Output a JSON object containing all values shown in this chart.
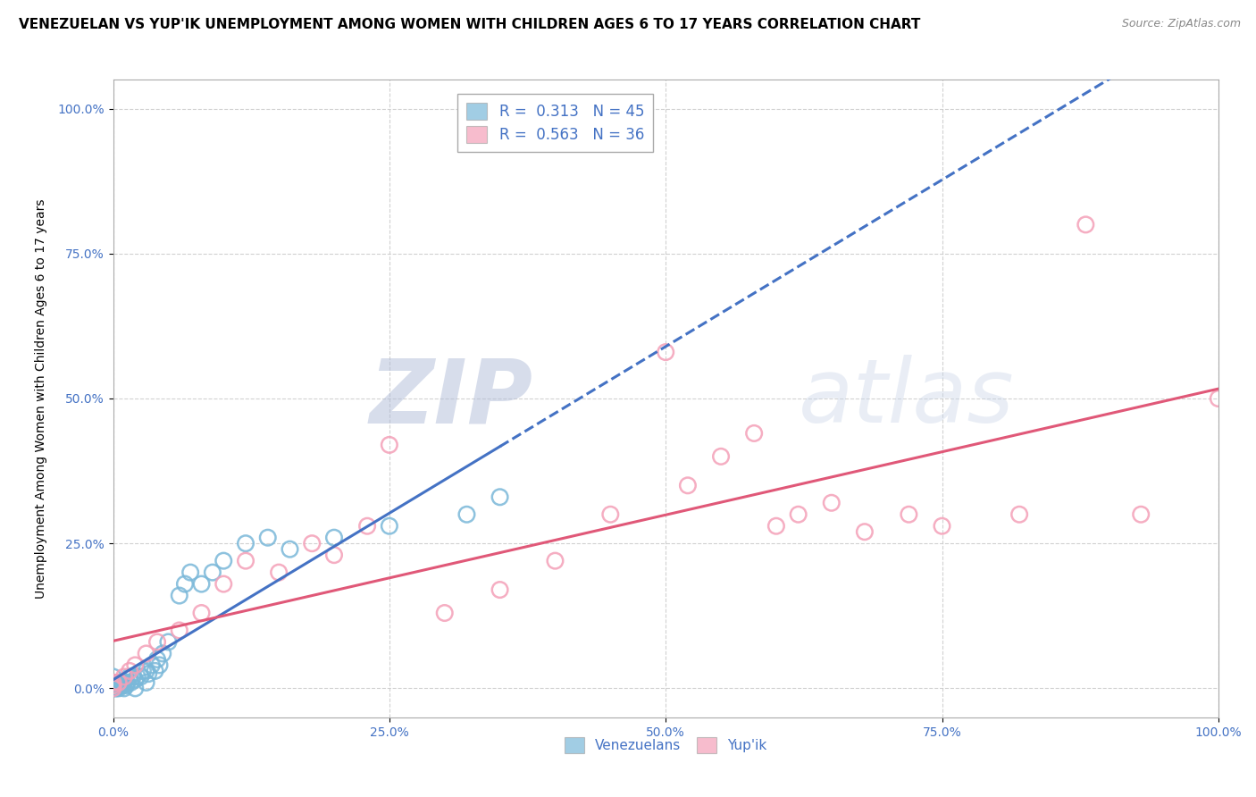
{
  "title": "VENEZUELAN VS YUP'IK UNEMPLOYMENT AMONG WOMEN WITH CHILDREN AGES 6 TO 17 YEARS CORRELATION CHART",
  "source": "Source: ZipAtlas.com",
  "ylabel": "Unemployment Among Women with Children Ages 6 to 17 years",
  "xlim": [
    0.0,
    1.0
  ],
  "ylim": [
    -0.05,
    1.05
  ],
  "xticks": [
    0.0,
    0.25,
    0.5,
    0.75,
    1.0
  ],
  "xticklabels": [
    "0.0%",
    "25.0%",
    "50.0%",
    "75.0%",
    "100.0%"
  ],
  "yticks": [
    0.0,
    0.25,
    0.5,
    0.75,
    1.0
  ],
  "yticklabels": [
    "0.0%",
    "25.0%",
    "50.0%",
    "75.0%",
    "100.0%"
  ],
  "venezuelan_color": "#7ab8d9",
  "yupik_color": "#f4a0b8",
  "line_ven_color": "#4472c4",
  "line_yup_color": "#e05878",
  "venezuelan_R": "0.313",
  "venezuelan_N": "45",
  "yupik_R": "0.563",
  "yupik_N": "36",
  "background_color": "#ffffff",
  "grid_color": "#cccccc",
  "watermark_zip": "ZIP",
  "watermark_atlas": "atlas",
  "title_fontsize": 11,
  "axis_label_fontsize": 10,
  "tick_fontsize": 10,
  "legend_fontsize": 12,
  "venezuelan_x": [
    0.0,
    0.0,
    0.0,
    0.002,
    0.003,
    0.004,
    0.005,
    0.006,
    0.007,
    0.008,
    0.009,
    0.01,
    0.01,
    0.012,
    0.013,
    0.015,
    0.016,
    0.018,
    0.02,
    0.02,
    0.022,
    0.025,
    0.027,
    0.03,
    0.03,
    0.032,
    0.035,
    0.038,
    0.04,
    0.042,
    0.045,
    0.05,
    0.06,
    0.065,
    0.07,
    0.08,
    0.09,
    0.1,
    0.12,
    0.14,
    0.16,
    0.2,
    0.25,
    0.32,
    0.35
  ],
  "venezuelan_y": [
    0.0,
    0.01,
    0.02,
    0.0,
    0.0,
    0.005,
    0.0,
    0.01,
    0.005,
    0.01,
    0.005,
    0.0,
    0.01,
    0.005,
    0.01,
    0.02,
    0.01,
    0.02,
    0.0,
    0.015,
    0.02,
    0.02,
    0.03,
    0.01,
    0.03,
    0.025,
    0.04,
    0.03,
    0.05,
    0.04,
    0.06,
    0.08,
    0.16,
    0.18,
    0.2,
    0.18,
    0.2,
    0.22,
    0.25,
    0.26,
    0.24,
    0.26,
    0.28,
    0.3,
    0.33
  ],
  "yupik_x": [
    0.0,
    0.0,
    0.0,
    0.005,
    0.01,
    0.015,
    0.02,
    0.03,
    0.04,
    0.06,
    0.08,
    0.1,
    0.12,
    0.15,
    0.18,
    0.2,
    0.23,
    0.25,
    0.3,
    0.35,
    0.4,
    0.45,
    0.5,
    0.52,
    0.55,
    0.58,
    0.6,
    0.62,
    0.65,
    0.68,
    0.72,
    0.75,
    0.82,
    0.88,
    0.93,
    1.0
  ],
  "yupik_y": [
    0.0,
    0.005,
    0.01,
    0.01,
    0.02,
    0.03,
    0.04,
    0.06,
    0.08,
    0.1,
    0.13,
    0.18,
    0.22,
    0.2,
    0.25,
    0.23,
    0.28,
    0.42,
    0.13,
    0.17,
    0.22,
    0.3,
    0.58,
    0.35,
    0.4,
    0.44,
    0.28,
    0.3,
    0.32,
    0.27,
    0.3,
    0.28,
    0.3,
    0.8,
    0.3,
    0.5
  ]
}
